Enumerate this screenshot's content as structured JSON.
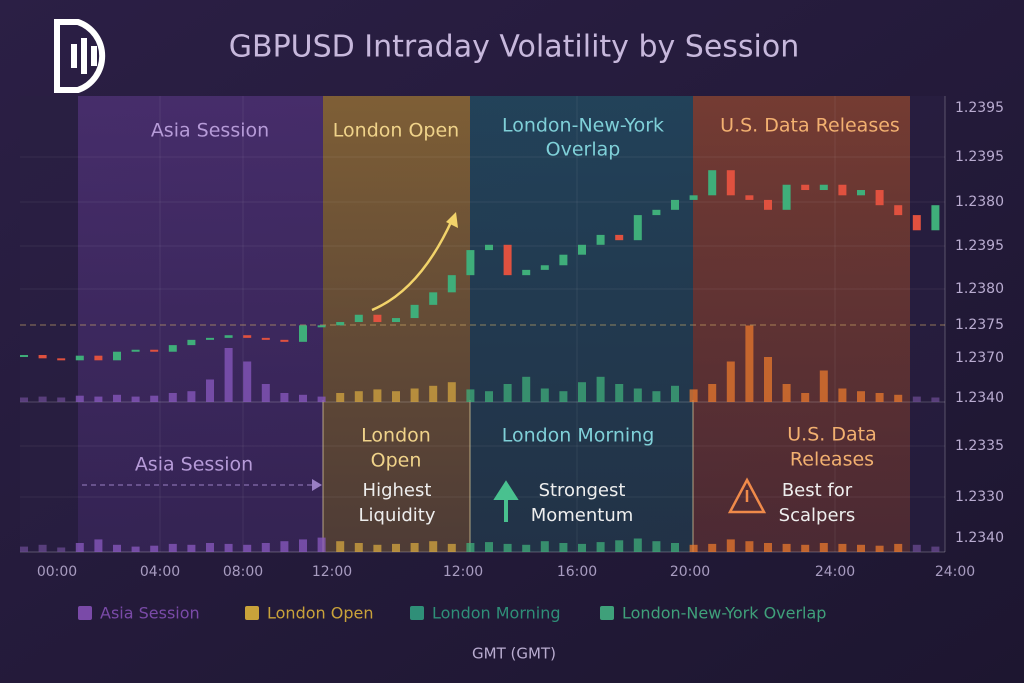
{
  "chart_data": {
    "type": "candlestick",
    "title": "GBPUSD Intraday Volatility by Session",
    "ylim": [
      1.2365,
      1.24
    ],
    "price_labels": [
      "1.2395",
      "1.2395",
      "1.2380",
      "1.2395",
      "1.2380",
      "1.2375",
      "1.2370",
      "1.2340",
      "1.2335",
      "1.2330",
      "1.2340"
    ],
    "time_labels": [
      "00:00",
      "04:00",
      "08:00",
      "12:00",
      "12:00",
      "16:00",
      "20:00",
      "24:00",
      "24:00"
    ],
    "x_label": "GMT (GMT)",
    "up_color": "#3fae7a",
    "down_color": "#e0513f",
    "open": [
      1.237,
      1.23703,
      1.23698,
      1.23695,
      1.23702,
      1.23695,
      1.23708,
      1.23711,
      1.23708,
      1.23718,
      1.23726,
      1.23729,
      1.23733,
      1.23729,
      1.23726,
      1.23723,
      1.23748,
      1.23748,
      1.23753,
      1.23764,
      1.23753,
      1.23759,
      1.23779,
      1.23798,
      1.23824,
      1.23862,
      1.2387,
      1.23824,
      1.23832,
      1.23839,
      1.23855,
      1.2387,
      1.23885,
      1.23877,
      1.23915,
      1.23923,
      1.23938,
      1.23945,
      1.23983,
      1.23945,
      1.23938,
      1.23923,
      1.23961,
      1.23953,
      1.23961,
      1.23945,
      1.23953,
      1.2393,
      1.23915,
      1.23892
    ],
    "close": [
      1.23703,
      1.23698,
      1.23695,
      1.23702,
      1.23695,
      1.23708,
      1.23711,
      1.23708,
      1.23718,
      1.23726,
      1.23729,
      1.23733,
      1.23729,
      1.23726,
      1.23723,
      1.23748,
      1.23748,
      1.23753,
      1.23764,
      1.23753,
      1.23759,
      1.23779,
      1.23798,
      1.23824,
      1.23862,
      1.2387,
      1.23824,
      1.23832,
      1.23839,
      1.23855,
      1.2387,
      1.23885,
      1.23877,
      1.23915,
      1.23923,
      1.23938,
      1.23945,
      1.23983,
      1.23945,
      1.23938,
      1.23923,
      1.23961,
      1.23953,
      1.23961,
      1.23945,
      1.23953,
      1.2393,
      1.23915,
      1.23892,
      1.2393
    ],
    "volume_lim": [
      0,
      100
    ],
    "volume": [
      5,
      6,
      5,
      7,
      6,
      8,
      6,
      7,
      10,
      12,
      25,
      60,
      45,
      20,
      10,
      8,
      6,
      10,
      12,
      14,
      12,
      15,
      18,
      22,
      14,
      12,
      20,
      28,
      15,
      12,
      22,
      28,
      20,
      15,
      12,
      18,
      14,
      20,
      45,
      85,
      50,
      20,
      10,
      35,
      15,
      12,
      10,
      8,
      6,
      5
    ],
    "lower_volume": [
      6,
      8,
      5,
      10,
      14,
      8,
      6,
      7,
      9,
      8,
      10,
      9,
      8,
      10,
      12,
      14,
      16,
      12,
      10,
      8,
      9,
      10,
      12,
      9,
      10,
      11,
      9,
      8,
      12,
      10,
      9,
      11,
      13,
      15,
      12,
      10,
      8,
      9,
      14,
      12,
      10,
      9,
      8,
      10,
      9,
      8,
      7,
      9,
      8,
      6
    ],
    "zone_labels": [
      [
        "Asia Session"
      ],
      [
        "London Open"
      ],
      [
        "London-New-York",
        "Overlap"
      ],
      [
        "U.S. Data Releases"
      ]
    ],
    "lower_labels": [
      [
        "Asia Session"
      ],
      [
        "London",
        "Open"
      ],
      [
        "Highest",
        "Liquidity"
      ],
      [
        "London Morning"
      ],
      [
        "Strongest",
        "Momentum"
      ],
      [
        "U.S. Data",
        "Releases"
      ],
      [
        "Best for",
        "Scalpers"
      ]
    ],
    "series": [
      {
        "name": "Asia Session",
        "color": "#7a4aa8"
      },
      {
        "name": "London Open",
        "color": "#c9a23a"
      },
      {
        "name": "London Morning",
        "color": "#2f8f78"
      },
      {
        "name": "London-New-York Overlap",
        "color": "#3fa07a"
      }
    ]
  }
}
